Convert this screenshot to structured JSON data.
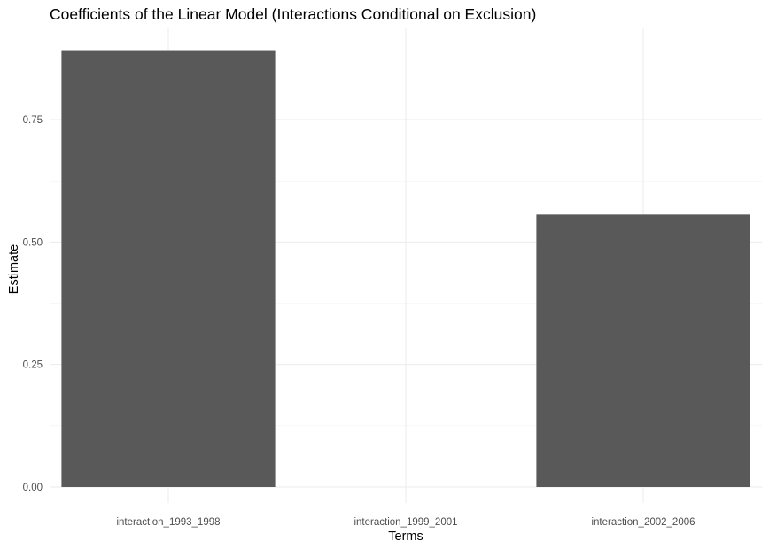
{
  "chart_data": {
    "type": "bar",
    "title": "Coefficients of the Linear Model (Interactions Conditional on Exclusion)",
    "xlabel": "Terms",
    "ylabel": "Estimate",
    "categories": [
      "interaction_1993_1998",
      "interaction_1999_2001",
      "interaction_2002_2006"
    ],
    "values": [
      0.89,
      null,
      0.556
    ],
    "ylim": [
      0,
      0.9
    ],
    "yticks": [
      0.0,
      0.25,
      0.5,
      0.75
    ],
    "ytick_labels": [
      "0.00",
      "0.25",
      "0.50",
      "0.75"
    ],
    "bar_color": "#595959",
    "grid": true,
    "legend": "none"
  }
}
